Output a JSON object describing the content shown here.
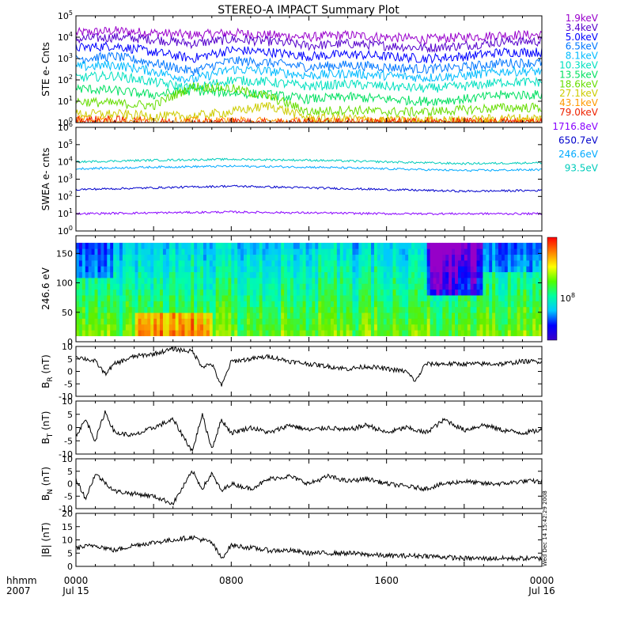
{
  "title": "STEREO-A IMPACT Summary Plot",
  "time_axis": {
    "row1_label": "hhmm",
    "row2_label": "2007",
    "ticks": [
      {
        "t": 0,
        "hhmm": "0000",
        "date": "Jul 15"
      },
      {
        "t": 8,
        "hhmm": "0800",
        "date": ""
      },
      {
        "t": 16,
        "hhmm": "1600",
        "date": ""
      },
      {
        "t": 24,
        "hhmm": "0000",
        "date": "Jul 16"
      }
    ],
    "range_hours": [
      0,
      24
    ]
  },
  "side_stamp": "Wed Dec 14 15:42:29 2008",
  "colorbar": {
    "label": "10",
    "label_exp": "8",
    "colors": [
      "#3a00c8",
      "#0000ff",
      "#00c8ff",
      "#00ffa0",
      "#50ff00",
      "#ffff00",
      "#ff8000",
      "#ff0000"
    ]
  },
  "chart_data": [
    {
      "id": "ste",
      "type": "line",
      "ylabel": "STE e- Cnts",
      "scale": "log",
      "ylim_exp": [
        0,
        5
      ],
      "y_ticks": [
        {
          "v": 0,
          "base": "10",
          "exp": "0"
        },
        {
          "v": 1,
          "base": "10",
          "exp": "1"
        },
        {
          "v": 2,
          "base": "10",
          "exp": "2"
        },
        {
          "v": 3,
          "base": "10",
          "exp": "3"
        },
        {
          "v": 4,
          "base": "10",
          "exp": "4"
        },
        {
          "v": 5,
          "base": "10",
          "exp": "5"
        }
      ],
      "series": [
        {
          "name": "1.9keV",
          "color": "#9900cc",
          "log_x": [
            0,
            2,
            4,
            6,
            8,
            10,
            12,
            14,
            16,
            18,
            20,
            22,
            24
          ],
          "log_y": [
            4.2,
            4.3,
            4.2,
            4.1,
            4.2,
            4.1,
            4.0,
            4.1,
            4.0,
            3.9,
            4.0,
            4.1,
            4.1
          ]
        },
        {
          "name": "3.4keV",
          "color": "#5500cc",
          "log_x": [
            0,
            2,
            4,
            6,
            8,
            10,
            12,
            14,
            16,
            18,
            20,
            22,
            24
          ],
          "log_y": [
            3.9,
            4.0,
            3.9,
            3.7,
            3.9,
            3.8,
            3.6,
            3.7,
            3.6,
            3.5,
            3.6,
            3.8,
            3.8
          ]
        },
        {
          "name": "5.0keV",
          "color": "#0000ff",
          "log_x": [
            0,
            2,
            4,
            6,
            8,
            10,
            12,
            14,
            16,
            18,
            20,
            22,
            24
          ],
          "log_y": [
            3.5,
            3.6,
            3.3,
            3.0,
            3.4,
            3.3,
            3.1,
            3.2,
            3.1,
            3.0,
            3.1,
            3.3,
            3.3
          ]
        },
        {
          "name": "6.5keV",
          "color": "#0077ff",
          "log_x": [
            0,
            2,
            4,
            6,
            8,
            10,
            12,
            14,
            16,
            18,
            20,
            22,
            24
          ],
          "log_y": [
            3.0,
            3.1,
            2.8,
            2.4,
            2.9,
            2.8,
            2.6,
            2.7,
            2.6,
            2.5,
            2.6,
            2.8,
            2.8
          ]
        },
        {
          "name": "8.1keV",
          "color": "#00bbff",
          "log_x": [
            0,
            2,
            4,
            6,
            8,
            10,
            12,
            14,
            16,
            18,
            20,
            22,
            24
          ],
          "log_y": [
            2.6,
            2.7,
            2.4,
            2.0,
            2.5,
            2.4,
            2.2,
            2.3,
            2.2,
            2.1,
            2.2,
            2.4,
            2.4
          ]
        },
        {
          "name": "10.3keV",
          "color": "#00e0c0",
          "log_x": [
            0,
            2,
            4,
            6,
            8,
            10,
            12,
            14,
            16,
            18,
            20,
            22,
            24
          ],
          "log_y": [
            2.1,
            2.2,
            1.9,
            1.6,
            2.0,
            1.9,
            1.7,
            1.8,
            1.7,
            1.6,
            1.7,
            1.9,
            1.9
          ]
        },
        {
          "name": "13.5keV",
          "color": "#00e060",
          "log_x": [
            0,
            2,
            4,
            6,
            8,
            10,
            12,
            14,
            16,
            18,
            20,
            22,
            24
          ],
          "log_y": [
            1.6,
            1.5,
            1.3,
            1.5,
            1.4,
            1.3,
            1.1,
            1.2,
            1.1,
            1.0,
            1.1,
            1.3,
            1.3
          ]
        },
        {
          "name": "18.6keV",
          "color": "#66dd00",
          "log_x": [
            0,
            2,
            4,
            6,
            8,
            10,
            12,
            14,
            16,
            18,
            20,
            22,
            24
          ],
          "log_y": [
            1.0,
            0.9,
            0.8,
            1.7,
            1.6,
            1.2,
            0.5,
            0.6,
            0.5,
            0.5,
            0.6,
            0.7,
            0.7
          ]
        },
        {
          "name": "27.1keV",
          "color": "#cccc00",
          "log_x": [
            0,
            2,
            4,
            6,
            8,
            10,
            12,
            14,
            16,
            18,
            20,
            22,
            24
          ],
          "log_y": [
            0.4,
            0.4,
            0.3,
            0.3,
            0.5,
            0.8,
            0.2,
            0.2,
            0.1,
            0.1,
            0.1,
            0.2,
            0.2
          ]
        },
        {
          "name": "43.1keV",
          "color": "#ff9900",
          "log_x": [
            0,
            2,
            4,
            6,
            8,
            10,
            12,
            14,
            16,
            18,
            20,
            22,
            24
          ],
          "log_y": [
            0.2,
            0.1,
            0.05,
            0.05,
            0.05,
            0.05,
            0.05,
            0.05,
            0.05,
            0.05,
            0.05,
            0.05,
            0.05
          ]
        },
        {
          "name": "79.0keV",
          "color": "#ee2200",
          "log_x": [
            0,
            2,
            4,
            6,
            8,
            10,
            12,
            14,
            16,
            18,
            20,
            22,
            24
          ],
          "log_y": [
            0.1,
            0.1,
            0.0,
            0.0,
            0.0,
            0.0,
            0.0,
            0.0,
            0.0,
            0.0,
            0.0,
            0.0,
            0.0
          ]
        }
      ]
    },
    {
      "id": "swea",
      "type": "line",
      "ylabel": "SWEA e- cnts",
      "scale": "log",
      "ylim_exp": [
        0,
        6
      ],
      "y_ticks": [
        {
          "v": 0,
          "base": "10",
          "exp": "0"
        },
        {
          "v": 1,
          "base": "10",
          "exp": "1"
        },
        {
          "v": 2,
          "base": "10",
          "exp": "2"
        },
        {
          "v": 3,
          "base": "10",
          "exp": "3"
        },
        {
          "v": 4,
          "base": "10",
          "exp": "4"
        },
        {
          "v": 5,
          "base": "10",
          "exp": "5"
        },
        {
          "v": 6,
          "base": "10",
          "exp": "6"
        }
      ],
      "series": [
        {
          "name": "1716.8eV",
          "color": "#8800ff",
          "log_x": [
            0,
            4,
            8,
            12,
            16,
            20,
            24
          ],
          "log_y": [
            1.0,
            1.05,
            1.1,
            1.05,
            1.0,
            1.0,
            1.0
          ]
        },
        {
          "name": "650.7eV",
          "color": "#0000cc",
          "log_x": [
            0,
            4,
            8,
            12,
            16,
            20,
            24
          ],
          "log_y": [
            2.4,
            2.5,
            2.6,
            2.5,
            2.4,
            2.3,
            2.35
          ]
        },
        {
          "name": "246.6eV",
          "color": "#00aaff",
          "log_x": [
            0,
            4,
            8,
            12,
            16,
            20,
            24
          ],
          "log_y": [
            3.6,
            3.7,
            3.75,
            3.7,
            3.6,
            3.5,
            3.55
          ]
        },
        {
          "name": "93.5eV",
          "color": "#00ccbb",
          "log_x": [
            0,
            4,
            8,
            12,
            16,
            20,
            24
          ],
          "log_y": [
            4.0,
            4.1,
            4.15,
            4.1,
            4.0,
            3.9,
            3.95
          ]
        }
      ]
    },
    {
      "id": "pad",
      "type": "heatmap",
      "ylabel": "246.6 eV",
      "ylim": [
        0,
        180
      ],
      "y_ticks": [
        {
          "v": 0,
          "label": "0"
        },
        {
          "v": 50,
          "label": "50"
        },
        {
          "v": 100,
          "label": "100"
        },
        {
          "v": 150,
          "label": "150"
        }
      ]
    },
    {
      "id": "br",
      "type": "line",
      "ylabel": "B",
      "ylabel_sub": "R",
      "ylabel_unit": "(nT)",
      "ylim": [
        -10,
        10
      ],
      "y_ticks": [
        {
          "v": -10,
          "label": "-10"
        },
        {
          "v": -5,
          "label": "-5"
        },
        {
          "v": 0,
          "label": "0"
        },
        {
          "v": 5,
          "label": "5"
        },
        {
          "v": 10,
          "label": "10"
        }
      ],
      "x": [
        0,
        1,
        1.5,
        2,
        3,
        4,
        5,
        6,
        6.5,
        7,
        7.5,
        8,
        9,
        10,
        11,
        12,
        13,
        14,
        15,
        16,
        17,
        17.5,
        18,
        19,
        20,
        21,
        22,
        23,
        24
      ],
      "y": [
        6,
        4,
        -1,
        3,
        6,
        7,
        9,
        8,
        2,
        3,
        -6,
        4,
        5,
        6,
        4,
        3,
        2,
        1,
        2,
        1,
        0,
        -4,
        3,
        3,
        3,
        3,
        3,
        4,
        4
      ]
    },
    {
      "id": "bt",
      "type": "line",
      "ylabel": "B",
      "ylabel_sub": "T",
      "ylabel_unit": "(nT)",
      "ylim": [
        -10,
        10
      ],
      "y_ticks": [
        {
          "v": -10,
          "label": "-10"
        },
        {
          "v": -5,
          "label": "-5"
        },
        {
          "v": 0,
          "label": "0"
        },
        {
          "v": 5,
          "label": "5"
        },
        {
          "v": 10,
          "label": "10"
        }
      ],
      "x": [
        0,
        0.5,
        1,
        1.5,
        2,
        3,
        4,
        5,
        6,
        6.5,
        7,
        7.5,
        8,
        9,
        10,
        11,
        12,
        13,
        14,
        15,
        16,
        17,
        18,
        19,
        20,
        21,
        22,
        23,
        24
      ],
      "y": [
        -3,
        3,
        -5,
        6,
        -2,
        -3,
        0,
        3,
        -9,
        5,
        -8,
        3,
        -2,
        0,
        -2,
        1,
        -1,
        0,
        -1,
        1,
        -2,
        0,
        -2,
        3,
        -1,
        1,
        -1,
        -2,
        -1
      ]
    },
    {
      "id": "bn",
      "type": "line",
      "ylabel": "B",
      "ylabel_sub": "N",
      "ylabel_unit": "(nT)",
      "ylim": [
        -10,
        10
      ],
      "y_ticks": [
        {
          "v": -10,
          "label": "-10"
        },
        {
          "v": -5,
          "label": "-5"
        },
        {
          "v": 0,
          "label": "0"
        },
        {
          "v": 5,
          "label": "5"
        },
        {
          "v": 10,
          "label": "10"
        }
      ],
      "x": [
        0,
        0.5,
        1,
        2,
        3,
        4,
        5,
        6,
        6.5,
        7,
        7.5,
        8,
        9,
        10,
        11,
        12,
        13,
        14,
        15,
        16,
        17,
        18,
        19,
        20,
        21,
        22,
        23,
        24
      ],
      "y": [
        2,
        -6,
        4,
        -3,
        -4,
        -5,
        -8,
        5,
        -2,
        4,
        -3,
        0,
        -2,
        2,
        3,
        0,
        3,
        1,
        2,
        0,
        -1,
        -2,
        0,
        1,
        0,
        0,
        1,
        1
      ]
    },
    {
      "id": "bmag",
      "type": "line",
      "ylabel": "|B|",
      "ylabel_unit": "(nT)",
      "ylim": [
        0,
        20
      ],
      "y_ticks": [
        {
          "v": 0,
          "label": "0"
        },
        {
          "v": 5,
          "label": "5"
        },
        {
          "v": 10,
          "label": "10"
        },
        {
          "v": 15,
          "label": "15"
        },
        {
          "v": 20,
          "label": "20"
        }
      ],
      "x": [
        0,
        1,
        2,
        3,
        4,
        5,
        6,
        7,
        7.5,
        8,
        9,
        10,
        11,
        12,
        13,
        14,
        15,
        16,
        17,
        18,
        19,
        20,
        21,
        22,
        23,
        24
      ],
      "y": [
        7,
        8,
        6,
        8,
        9,
        10,
        11,
        9,
        3,
        8,
        7,
        6,
        6,
        5,
        5,
        5,
        4.5,
        4,
        4,
        4,
        3.5,
        3,
        3,
        3,
        3,
        3
      ]
    }
  ]
}
